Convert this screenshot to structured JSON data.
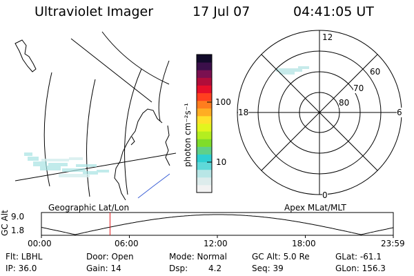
{
  "header": {
    "instrument": "Ultraviolet Imager",
    "date": "17 Jul 07",
    "time": "04:41:05 UT"
  },
  "colorbar": {
    "unit_label": "photon cm⁻²s⁻¹",
    "tick_100": "100",
    "tick_10": "10",
    "colors": [
      "#f2f2f2",
      "#ddecec",
      "#b8e6e6",
      "#5fd9d9",
      "#2ecfd2",
      "#5fd08a",
      "#7fdd2a",
      "#b4ee1f",
      "#e2f51e",
      "#ffe12b",
      "#ffad23",
      "#ff7d1e",
      "#ff3f1f",
      "#e60f2a",
      "#b00d3a",
      "#7a1050",
      "#3b0f4a",
      "#120a2a"
    ]
  },
  "polar": {
    "mlt_12": "12",
    "mlt_18": "18",
    "mlt_6": "6",
    "mlt_0": "0",
    "lat_60": "60",
    "lat_70": "70",
    "lat_80": "80"
  },
  "strip": {
    "left_label": "Geographic Lat/Lon",
    "right_label": "Apex MLat/MLT",
    "axis_title": "GC Alt",
    "y_max": "9.0",
    "y_min": "1.8",
    "x_ticks": [
      "00:00",
      "06:00",
      "12:00",
      "18:00",
      "23:59"
    ],
    "current_marker_hour": 4.68
  },
  "footer": {
    "flt": "Flt: LBHL",
    "ip": "IP: 36.0",
    "door": "Door: Open",
    "gain": "Gain: 14",
    "mode": "Mode: Normal",
    "dsp_label": "Dsp:",
    "dsp_value": "4.2",
    "gc_alt": "GC Alt: 5.0 Re",
    "seq": "Seq: 39",
    "glat": "GLat: -61.1",
    "glon": "GLon: 156.3"
  }
}
